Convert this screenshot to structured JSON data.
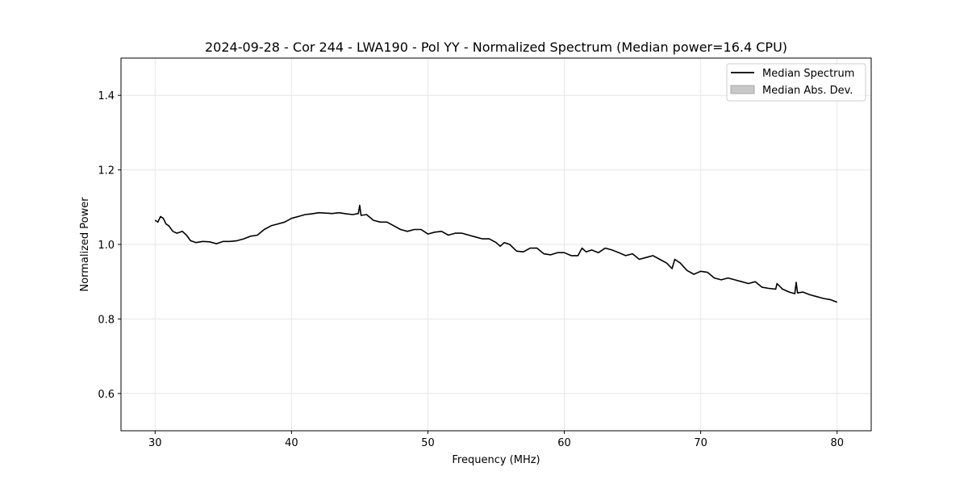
{
  "chart_data": {
    "type": "line",
    "title": "2024-09-28 - Cor 244 - LWA190 - Pol YY - Normalized Spectrum (Median power=16.4 CPU)",
    "xlabel": "Frequency (MHz)",
    "ylabel": "Normalized Power",
    "xlim": [
      27.5,
      82.5
    ],
    "ylim": [
      0.5,
      1.5
    ],
    "xticks": [
      30,
      40,
      50,
      60,
      70,
      80
    ],
    "yticks": [
      0.6,
      0.8,
      1.0,
      1.2,
      1.4
    ],
    "xtick_labels": [
      "30",
      "40",
      "50",
      "60",
      "70",
      "80"
    ],
    "ytick_labels": [
      "0.6",
      "0.8",
      "1.0",
      "1.2",
      "1.4"
    ],
    "grid": true,
    "legend_position": "top-right",
    "legend": [
      {
        "label": "Median Spectrum",
        "kind": "line",
        "color": "#000000"
      },
      {
        "label": "Median Abs. Dev.",
        "kind": "patch",
        "color": "#c8c8c8"
      }
    ],
    "series": [
      {
        "name": "Median Spectrum",
        "color": "#000000",
        "x": [
          30.0,
          30.2,
          30.4,
          30.6,
          30.8,
          31.0,
          31.3,
          31.6,
          32.0,
          32.3,
          32.6,
          33.0,
          33.5,
          34.0,
          34.5,
          35.0,
          35.5,
          36.0,
          36.5,
          37.0,
          37.5,
          38.0,
          38.5,
          39.0,
          39.5,
          40.0,
          40.5,
          41.0,
          41.5,
          42.0,
          42.5,
          43.0,
          43.5,
          44.0,
          44.5,
          44.9,
          45.0,
          45.1,
          45.5,
          46.0,
          46.5,
          47.0,
          47.5,
          48.0,
          48.5,
          49.0,
          49.5,
          50.0,
          50.5,
          51.0,
          51.5,
          52.0,
          52.5,
          53.0,
          53.5,
          54.0,
          54.5,
          55.0,
          55.3,
          55.6,
          56.0,
          56.5,
          57.0,
          57.5,
          58.0,
          58.5,
          59.0,
          59.5,
          60.0,
          60.5,
          61.0,
          61.3,
          61.6,
          62.0,
          62.5,
          63.0,
          63.5,
          64.0,
          64.5,
          65.0,
          65.5,
          66.0,
          66.5,
          67.0,
          67.5,
          67.9,
          68.1,
          68.5,
          69.0,
          69.5,
          70.0,
          70.5,
          71.0,
          71.5,
          72.0,
          72.5,
          73.0,
          73.5,
          74.0,
          74.5,
          75.0,
          75.5,
          75.6,
          76.0,
          76.5,
          76.9,
          77.0,
          77.1,
          77.5,
          78.0,
          78.5,
          79.0,
          79.5,
          80.0
        ],
        "y": [
          1.065,
          1.06,
          1.075,
          1.07,
          1.055,
          1.05,
          1.035,
          1.03,
          1.035,
          1.025,
          1.01,
          1.005,
          1.008,
          1.007,
          1.002,
          1.008,
          1.008,
          1.01,
          1.015,
          1.022,
          1.025,
          1.04,
          1.05,
          1.055,
          1.06,
          1.07,
          1.075,
          1.08,
          1.082,
          1.085,
          1.084,
          1.083,
          1.085,
          1.082,
          1.08,
          1.083,
          1.105,
          1.078,
          1.08,
          1.065,
          1.06,
          1.06,
          1.05,
          1.04,
          1.035,
          1.04,
          1.04,
          1.028,
          1.033,
          1.035,
          1.025,
          1.03,
          1.03,
          1.025,
          1.02,
          1.015,
          1.015,
          1.005,
          0.995,
          1.005,
          1.0,
          0.982,
          0.98,
          0.99,
          0.99,
          0.975,
          0.972,
          0.978,
          0.978,
          0.97,
          0.97,
          0.99,
          0.98,
          0.985,
          0.978,
          0.99,
          0.985,
          0.978,
          0.97,
          0.975,
          0.96,
          0.965,
          0.97,
          0.96,
          0.95,
          0.935,
          0.96,
          0.95,
          0.93,
          0.92,
          0.928,
          0.925,
          0.91,
          0.905,
          0.91,
          0.905,
          0.9,
          0.895,
          0.9,
          0.885,
          0.882,
          0.88,
          0.895,
          0.88,
          0.872,
          0.868,
          0.898,
          0.87,
          0.872,
          0.865,
          0.86,
          0.855,
          0.852,
          0.845
        ]
      }
    ]
  }
}
